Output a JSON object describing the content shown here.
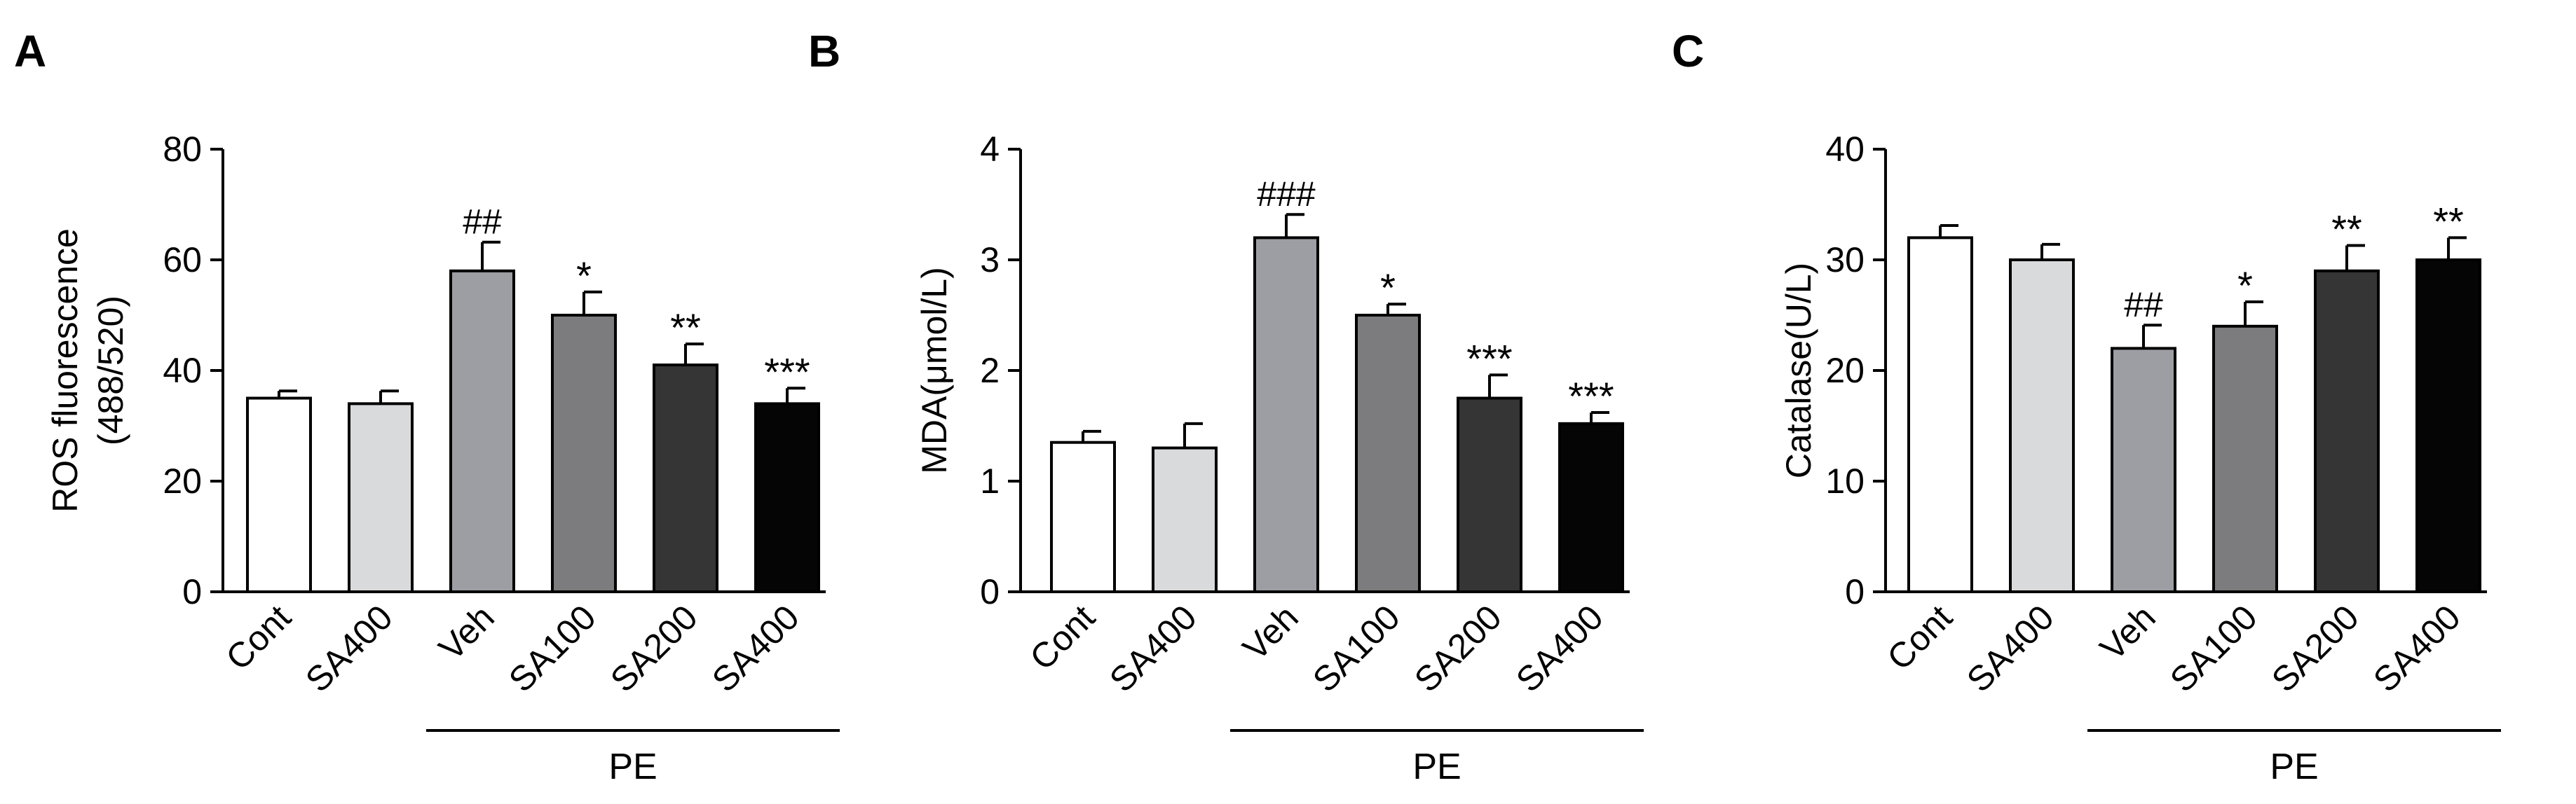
{
  "chart_data": [
    {
      "type": "bar",
      "panel_label": "A",
      "title": "",
      "xlabel": "",
      "ylabel_lines": [
        "ROS fluorescence",
        "(488/520)"
      ],
      "categories": [
        "Cont",
        "SA400",
        "Veh",
        "SA100",
        "SA200",
        "SA400"
      ],
      "values": [
        35,
        34,
        58,
        50,
        41,
        34
      ],
      "errors": [
        1.3,
        2.3,
        5.2,
        4.2,
        3.8,
        2.8
      ],
      "significance": [
        "",
        "",
        "##",
        "*",
        "**",
        "***"
      ],
      "bar_colors": [
        "#ffffff",
        "#d9dadb",
        "#9d9ea3",
        "#7c7c7e",
        "#353535",
        "#050505"
      ],
      "ylim": [
        0,
        80
      ],
      "yticks": [
        0,
        20,
        40,
        60,
        80
      ],
      "group_label": "PE",
      "group_categories": [
        2,
        5
      ]
    },
    {
      "type": "bar",
      "panel_label": "B",
      "title": "",
      "xlabel": "",
      "ylabel_lines": [
        "MDA(μmol/L)"
      ],
      "categories": [
        "Cont",
        "SA400",
        "Veh",
        "SA100",
        "SA200",
        "SA400"
      ],
      "values": [
        1.35,
        1.3,
        3.2,
        2.5,
        1.75,
        1.52
      ],
      "errors": [
        0.1,
        0.22,
        0.21,
        0.1,
        0.21,
        0.1
      ],
      "significance": [
        "",
        "",
        "###",
        "*",
        "***",
        "***"
      ],
      "bar_colors": [
        "#ffffff",
        "#d9dadb",
        "#9d9ea3",
        "#7c7c7e",
        "#353535",
        "#050505"
      ],
      "ylim": [
        0,
        4
      ],
      "yticks": [
        0,
        1,
        2,
        3,
        4
      ],
      "group_label": "PE",
      "group_categories": [
        2,
        5
      ]
    },
    {
      "type": "bar",
      "panel_label": "C",
      "title": "",
      "xlabel": "",
      "ylabel_lines": [
        "Catalase(U/L)"
      ],
      "categories": [
        "Cont",
        "SA400",
        "Veh",
        "SA100",
        "SA200",
        "SA400"
      ],
      "values": [
        32,
        30,
        22,
        24,
        29,
        30
      ],
      "errors": [
        1.1,
        1.4,
        2.1,
        2.2,
        2.3,
        2.0
      ],
      "significance": [
        "",
        "",
        "##",
        "*",
        "**",
        "**"
      ],
      "bar_colors": [
        "#ffffff",
        "#d9dadb",
        "#9d9ea3",
        "#7c7c7e",
        "#353535",
        "#050505"
      ],
      "ylim": [
        0,
        40
      ],
      "yticks": [
        0,
        10,
        20,
        30,
        40
      ],
      "group_label": "PE",
      "group_categories": [
        2,
        5
      ]
    }
  ]
}
